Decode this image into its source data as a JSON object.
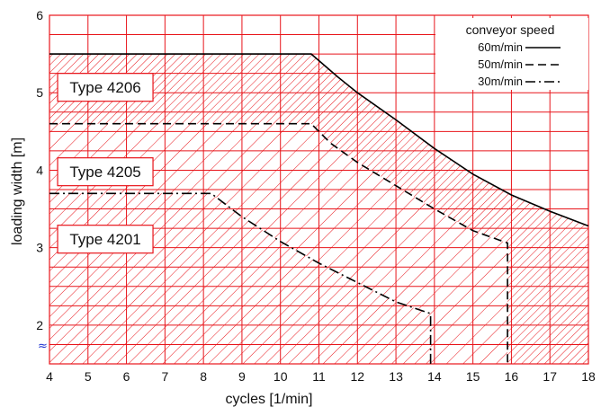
{
  "chart_data": {
    "type": "area",
    "title": "",
    "xlabel": "cycles [1/min]",
    "ylabel": "loading width [m]",
    "xlim": [
      4,
      18
    ],
    "ylim": [
      1.5,
      6
    ],
    "x_ticks": [
      4,
      5,
      6,
      7,
      8,
      9,
      10,
      11,
      12,
      13,
      14,
      15,
      16,
      17,
      18
    ],
    "y_ticks": [
      2,
      3,
      4,
      5,
      6
    ],
    "axis_break_symbol": "≈",
    "grid": true,
    "legend": {
      "title": "conveyor speed",
      "placement": "top-right",
      "entries": [
        {
          "label": "60m/min",
          "style": "solid"
        },
        {
          "label": "50m/min",
          "style": "dashed"
        },
        {
          "label": "30m/min",
          "style": "dash-dot"
        }
      ]
    },
    "series": [
      {
        "name": "Type 4206",
        "line_style": "solid",
        "x": [
          4,
          10.8,
          11.5,
          12,
          13,
          14,
          15,
          16,
          17,
          18
        ],
        "y": [
          5.5,
          5.5,
          5.2,
          5.0,
          4.65,
          4.28,
          3.95,
          3.68,
          3.47,
          3.28
        ]
      },
      {
        "name": "Type 4205",
        "line_style": "dashed",
        "x": [
          4,
          10.8,
          11.3,
          12,
          13,
          14,
          15,
          15.9,
          15.9
        ],
        "y": [
          4.6,
          4.6,
          4.35,
          4.1,
          3.8,
          3.5,
          3.22,
          3.06,
          1.5
        ]
      },
      {
        "name": "Type 4201",
        "line_style": "dash-dot",
        "x": [
          4,
          8.2,
          9,
          10,
          11,
          12,
          13,
          13.9,
          13.9
        ],
        "y": [
          3.7,
          3.7,
          3.4,
          3.08,
          2.8,
          2.55,
          2.3,
          2.15,
          1.5
        ]
      }
    ],
    "colors": {
      "grid": "#e8141a",
      "hatch": "#e8141a",
      "curve": "#000000",
      "break_symbol": "#1a2fd0"
    }
  }
}
